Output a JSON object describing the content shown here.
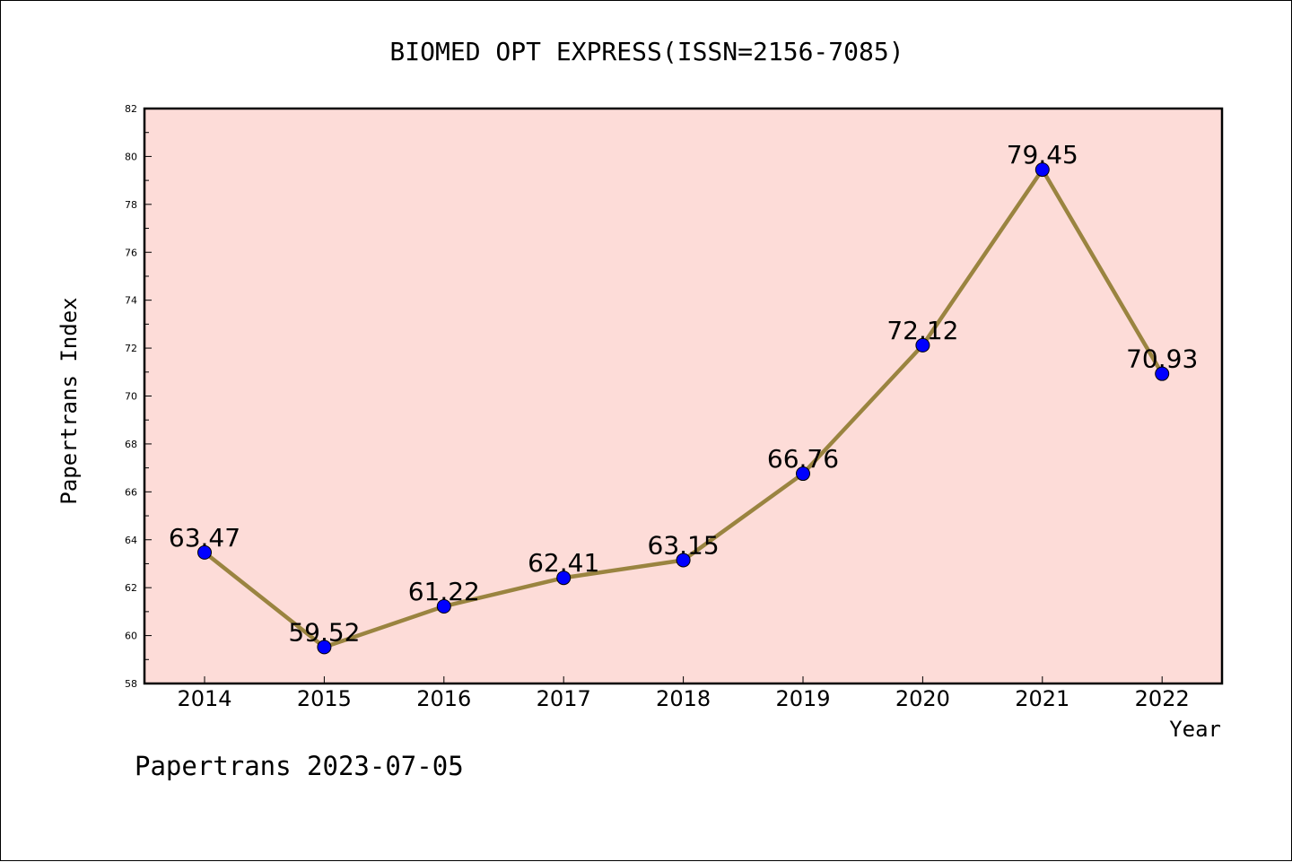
{
  "chart_data": {
    "type": "line",
    "title": "BIOMED OPT EXPRESS(ISSN=2156-7085)",
    "xlabel": "Year",
    "ylabel": "Papertrans Index",
    "footer": "Papertrans 2023-07-05",
    "categories": [
      "2014",
      "2015",
      "2016",
      "2017",
      "2018",
      "2019",
      "2020",
      "2021",
      "2022"
    ],
    "values": [
      63.47,
      59.52,
      61.22,
      62.41,
      63.15,
      66.76,
      72.12,
      79.45,
      70.93
    ],
    "data_labels": [
      "63.47",
      "59.52",
      "61.22",
      "62.41",
      "63.15",
      "66.76",
      "72.12",
      "79.45",
      "70.93"
    ],
    "ylim": [
      58,
      82
    ],
    "yticks": [
      "58",
      "60",
      "62",
      "64",
      "66",
      "68",
      "70",
      "72",
      "74",
      "76",
      "78",
      "80",
      "82"
    ],
    "grid": false,
    "colors": {
      "plot_background": "#fddcd8",
      "line": "#9a8440",
      "marker": "#0000ff"
    }
  }
}
